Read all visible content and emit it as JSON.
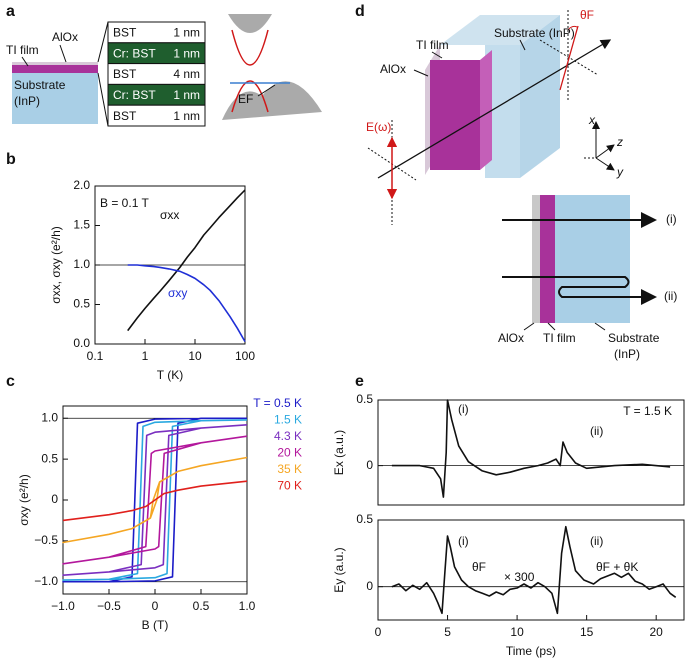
{
  "panel_labels": [
    "a",
    "b",
    "c",
    "d",
    "e"
  ],
  "panel_a": {
    "ti_film": "TI film",
    "alox": "AlOx",
    "substrate": [
      "Substrate",
      "(InP)"
    ],
    "layers": [
      {
        "material": "BST",
        "thickness": "1 nm"
      },
      {
        "material": "Cr: BST",
        "thickness": "1 nm"
      },
      {
        "material": "BST",
        "thickness": "4 nm"
      },
      {
        "material": "Cr: BST",
        "thickness": "1 nm"
      },
      {
        "material": "BST",
        "thickness": "1 nm"
      }
    ],
    "ef": "EF"
  },
  "panel_d": {
    "substrate": "Substrate (InP)",
    "ti_film": "TI film",
    "alox": "AlOx",
    "theta_f": "θF",
    "e_field": "E(ω)",
    "axes": [
      "x",
      "z",
      "y"
    ],
    "beams": [
      "(i)",
      "(ii)"
    ],
    "bottom_labels": {
      "alox": "AlOx",
      "ti_film": "TI film",
      "substrate": [
        "Substrate",
        "(InP)"
      ]
    }
  },
  "chart_data": [
    {
      "type": "line",
      "xlabel": "T (K)",
      "ylabel": "σxx, σxy (e²/h)",
      "xscale": "log",
      "xlim": [
        0.1,
        100
      ],
      "xticks": [
        0.1,
        1,
        10,
        100
      ],
      "ylim": [
        0,
        2
      ],
      "yticks": [
        {
          "value": 0,
          "label": "0.0"
        },
        0.5,
        {
          "value": 1,
          "label": "1.0"
        },
        1.5,
        {
          "value": 2,
          "label": "2.0"
        }
      ],
      "reference_lines": [
        1
      ],
      "annotations": [
        "B = 0.1 T",
        "σxx",
        "σxy"
      ],
      "series": [
        {
          "name": "σxx",
          "color": "#111111",
          "x": [
            0.45,
            0.7,
            1,
            1.5,
            2,
            3,
            5,
            7,
            10,
            15,
            20,
            30,
            50,
            70,
            100
          ],
          "values": [
            0.17,
            0.33,
            0.45,
            0.58,
            0.67,
            0.8,
            0.97,
            1.1,
            1.22,
            1.38,
            1.47,
            1.6,
            1.75,
            1.85,
            1.95
          ]
        },
        {
          "name": "σxy",
          "color": "#1f2fd6",
          "x": [
            0.45,
            0.7,
            1,
            1.5,
            2,
            3,
            5,
            7,
            10,
            15,
            20,
            30,
            50,
            70,
            100
          ],
          "values": [
            1.0,
            1.0,
            0.99,
            0.98,
            0.97,
            0.95,
            0.92,
            0.88,
            0.83,
            0.75,
            0.68,
            0.55,
            0.35,
            0.2,
            0.03
          ]
        }
      ]
    },
    {
      "type": "line",
      "xlabel": "B (T)",
      "ylabel": "σxy (e²/h)",
      "xlim": [
        -1,
        1
      ],
      "xticks": [
        {
          "value": -1,
          "label": "−1.0"
        },
        {
          "value": -0.5,
          "label": "−0.5"
        },
        0,
        0.5,
        {
          "value": 1,
          "label": "1.0"
        }
      ],
      "ylim": [
        -1.15,
        1.15
      ],
      "yticks": [
        {
          "value": -1,
          "label": "−1.0"
        },
        {
          "value": -0.5,
          "label": "−0.5"
        },
        0,
        0.5,
        {
          "value": 1,
          "label": "1.0"
        }
      ],
      "reference_lines": [
        1,
        -1
      ],
      "legend": "right",
      "series": [
        {
          "name": "T = 0.5 K",
          "color": "#1c1cc8",
          "x": [
            1,
            0.5,
            0,
            -0.19,
            -0.22,
            -0.25,
            -0.5,
            -1,
            -0.5,
            0,
            0.19,
            0.22,
            0.25,
            0.5,
            1
          ],
          "values": [
            1.0,
            1.0,
            0.99,
            0.94,
            0,
            -0.94,
            -1.0,
            -1.0,
            -1.0,
            -0.99,
            -0.94,
            0,
            0.94,
            1.0,
            1.0
          ]
        },
        {
          "name": "1.5 K",
          "color": "#2aa9e0",
          "x": [
            1,
            0.5,
            0,
            -0.13,
            -0.16,
            -0.19,
            -0.5,
            -1,
            -0.5,
            0,
            0.13,
            0.16,
            0.19,
            0.5,
            1
          ],
          "values": [
            0.98,
            0.97,
            0.95,
            0.9,
            0,
            -0.9,
            -0.97,
            -0.98,
            -0.97,
            -0.95,
            -0.9,
            0,
            0.9,
            0.97,
            0.98
          ]
        },
        {
          "name": "4.3 K",
          "color": "#7a2fc0",
          "x": [
            1,
            0.5,
            0,
            -0.09,
            -0.12,
            -0.15,
            -0.5,
            -1,
            -0.5,
            0,
            0.09,
            0.12,
            0.15,
            0.5,
            1
          ],
          "values": [
            0.92,
            0.88,
            0.83,
            0.79,
            0,
            -0.79,
            -0.88,
            -0.92,
            -0.88,
            -0.83,
            -0.79,
            0,
            0.79,
            0.88,
            0.92
          ]
        },
        {
          "name": "20 K",
          "color": "#b3179c",
          "x": [
            1,
            0.5,
            0,
            -0.04,
            -0.07,
            -0.1,
            -0.5,
            -1,
            -0.5,
            0,
            0.04,
            0.07,
            0.1,
            0.5,
            1
          ],
          "values": [
            0.78,
            0.7,
            0.6,
            0.57,
            0,
            -0.57,
            -0.7,
            -0.78,
            -0.7,
            -0.6,
            -0.57,
            0,
            0.57,
            0.7,
            0.78
          ]
        },
        {
          "name": "35 K",
          "color": "#f5a623",
          "x": [
            1,
            0.5,
            0.25,
            0.05,
            -0.02,
            -0.05,
            -0.25,
            -0.5,
            -1,
            -0.5,
            -0.25,
            -0.05,
            0.02,
            0.05,
            0.25,
            0.5,
            1
          ],
          "values": [
            0.52,
            0.42,
            0.35,
            0.22,
            0,
            -0.22,
            -0.35,
            -0.42,
            -0.52,
            -0.42,
            -0.35,
            -0.22,
            0,
            0.22,
            0.35,
            0.42,
            0.52
          ]
        },
        {
          "name": "70 K",
          "color": "#e0201c",
          "x": [
            -1,
            -0.5,
            -0.25,
            -0.1,
            0,
            0.1,
            0.25,
            0.5,
            1
          ],
          "values": [
            -0.25,
            -0.18,
            -0.13,
            -0.08,
            0,
            0.08,
            0.12,
            0.17,
            0.23
          ]
        }
      ]
    },
    {
      "type": "line",
      "ylabel": "Ex (a.u.)",
      "xlim": [
        0,
        22
      ],
      "ylim": [
        -0.3,
        0.5
      ],
      "yticks": [
        0,
        0.5
      ],
      "reference_lines": [
        0
      ],
      "annotations": [
        "(i)",
        "(ii)",
        "T = 1.5 K"
      ],
      "series": [
        {
          "name": "Ex",
          "color": "#111111",
          "x": [
            1,
            3,
            4,
            4.5,
            4.7,
            4.9,
            5.0,
            5.3,
            5.8,
            6.5,
            7.5,
            8.5,
            9.5,
            10.5,
            11.5,
            12.2,
            12.8,
            13.1,
            13.3,
            13.6,
            14.2,
            15,
            17,
            19,
            21
          ],
          "values": [
            0,
            0,
            -0.02,
            -0.1,
            -0.24,
            0.1,
            0.5,
            0.35,
            0.15,
            0.03,
            -0.04,
            -0.07,
            -0.05,
            -0.02,
            0.0,
            0.02,
            0.05,
            0.0,
            0.18,
            0.1,
            0.02,
            -0.02,
            0.0,
            0.01,
            -0.01
          ]
        }
      ]
    },
    {
      "type": "line",
      "xlabel": "Time (ps)",
      "ylabel": "Ey (a.u.)",
      "xlim": [
        0,
        22
      ],
      "xticks": [
        0,
        5,
        10,
        15,
        20
      ],
      "ylim": [
        -0.25,
        0.5
      ],
      "yticks": [
        0,
        0.5
      ],
      "reference_lines": [
        0
      ],
      "annotations": [
        "(i)",
        "(ii)",
        "θF",
        "× 300",
        "θF + θK"
      ],
      "series": [
        {
          "name": "Ey",
          "color": "#111111",
          "x": [
            1,
            1.5,
            2,
            2.5,
            3,
            3.5,
            4,
            4.3,
            4.6,
            4.8,
            5.0,
            5.2,
            5.5,
            6,
            6.5,
            7,
            7.5,
            8,
            8.5,
            9,
            9.5,
            10,
            10.5,
            11,
            11.5,
            12,
            12.5,
            12.9,
            13.2,
            13.5,
            13.8,
            14.2,
            14.8,
            15.5,
            16,
            16.5,
            17,
            17.5,
            18,
            18.5,
            19,
            19.5,
            20,
            20.5,
            21,
            21.4
          ],
          "values": [
            0.0,
            0.02,
            -0.03,
            0.01,
            -0.02,
            0.03,
            -0.05,
            -0.12,
            -0.2,
            0.1,
            0.38,
            0.3,
            0.15,
            0.05,
            0.0,
            -0.03,
            -0.05,
            -0.07,
            -0.04,
            -0.06,
            -0.02,
            -0.01,
            0.02,
            -0.01,
            0.03,
            0.0,
            -0.05,
            -0.2,
            0.25,
            0.45,
            0.3,
            0.12,
            0.05,
            0.02,
            0.06,
            0.08,
            0.1,
            0.07,
            0.1,
            0.04,
            0.02,
            -0.02,
            0.0,
            0.02,
            -0.05,
            -0.08
          ]
        }
      ]
    }
  ]
}
